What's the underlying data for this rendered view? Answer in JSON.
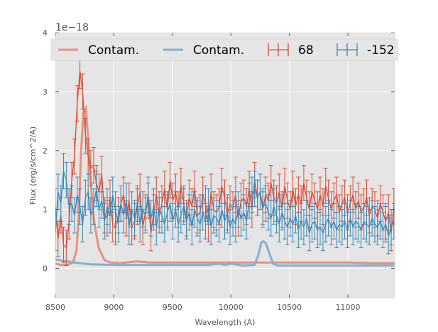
{
  "chart_data": {
    "type": "line",
    "title": "",
    "xlabel": "Wavelength (A)",
    "ylabel": "Flux (erg/s/cm^2/A)",
    "y_offset_text": "1e−18",
    "xlim": [
      8500,
      11400
    ],
    "ylim": [
      -0.5,
      4.0
    ],
    "y_scale_factor": 1e-18,
    "xticks": [
      8500,
      9000,
      9500,
      10000,
      10500,
      11000
    ],
    "xtick_labels": [
      "8500",
      "9000",
      "9500",
      "10000",
      "10500",
      "11000"
    ],
    "yticks": [
      0,
      1,
      2,
      3,
      4
    ],
    "ytick_labels": [
      "0",
      "1",
      "2",
      "3",
      "4"
    ],
    "grid": true,
    "legend_placement": "top",
    "colors": {
      "red": "#e24a33",
      "blue": "#348abd",
      "red_light": "#e8907d",
      "blue_light": "#7fb1d3",
      "background": "#e5e5e5"
    },
    "series": [
      {
        "name": "Contam.",
        "kind": "line",
        "color": "#e8907d",
        "x": [
          8500,
          8550,
          8600,
          8650,
          8680,
          8700,
          8720,
          8740,
          8760,
          8780,
          8800,
          8830,
          8870,
          8920,
          8970,
          9050,
          9200,
          9300,
          9500,
          10000,
          10500,
          11000,
          11200,
          11400
        ],
        "y": [
          0.08,
          0.06,
          0.06,
          0.1,
          0.3,
          0.9,
          2.0,
          2.65,
          2.72,
          2.2,
          1.5,
          0.8,
          0.35,
          0.14,
          0.1,
          0.09,
          0.12,
          0.1,
          0.1,
          0.1,
          0.1,
          0.1,
          0.09,
          0.09
        ]
      },
      {
        "name": "Contam.",
        "kind": "line",
        "color": "#7fb1d3",
        "x": [
          8500,
          8600,
          8700,
          8800,
          9000,
          9500,
          9800,
          9900,
          9950,
          10000,
          10100,
          10200,
          10230,
          10260,
          10280,
          10300,
          10330,
          10360,
          10400,
          10450,
          10500,
          11000,
          11400
        ],
        "y": [
          0.15,
          0.12,
          0.09,
          0.07,
          0.06,
          0.06,
          0.06,
          0.08,
          0.06,
          0.08,
          0.05,
          0.06,
          0.2,
          0.44,
          0.46,
          0.42,
          0.25,
          0.08,
          0.05,
          0.05,
          0.05,
          0.05,
          0.05
        ]
      },
      {
        "name": "68",
        "kind": "errorbar",
        "color": "#e24a33",
        "x": [
          8500,
          8523,
          8547,
          8570,
          8593,
          8617,
          8640,
          8663,
          8687,
          8710,
          8733,
          8757,
          8780,
          8803,
          8827,
          8850,
          8873,
          8897,
          8920,
          8943,
          8967,
          8990,
          9013,
          9037,
          9060,
          9083,
          9107,
          9130,
          9153,
          9177,
          9200,
          9223,
          9247,
          9270,
          9293,
          9317,
          9340,
          9363,
          9387,
          9410,
          9433,
          9457,
          9480,
          9503,
          9527,
          9550,
          9573,
          9597,
          9620,
          9643,
          9667,
          9690,
          9713,
          9737,
          9760,
          9783,
          9807,
          9830,
          9853,
          9877,
          9900,
          9923,
          9947,
          9970,
          9993,
          10017,
          10040,
          10063,
          10087,
          10110,
          10133,
          10157,
          10180,
          10203,
          10227,
          10250,
          10273,
          10297,
          10320,
          10343,
          10367,
          10390,
          10413,
          10437,
          10460,
          10483,
          10507,
          10530,
          10553,
          10577,
          10600,
          10623,
          10647,
          10670,
          10693,
          10717,
          10740,
          10763,
          10787,
          10810,
          10833,
          10857,
          10880,
          10903,
          10927,
          10950,
          10973,
          10997,
          11020,
          11043,
          11067,
          11090,
          11113,
          11137,
          11160,
          11183,
          11207,
          11230,
          11253,
          11277,
          11300,
          11323,
          11347,
          11370,
          11393
        ],
        "y": [
          1.05,
          0.5,
          0.9,
          0.4,
          0.35,
          0.8,
          1.5,
          1.9,
          2.8,
          3.35,
          3.0,
          2.25,
          1.9,
          1.7,
          1.75,
          1.45,
          1.3,
          1.6,
          0.9,
          0.85,
          1.2,
          0.75,
          0.7,
          0.9,
          1.1,
          1.25,
          0.85,
          1.15,
          0.7,
          0.8,
          1.05,
          1.3,
          0.7,
          0.95,
          1.15,
          0.6,
          0.95,
          1.25,
          0.9,
          1.1,
          1.35,
          1.0,
          1.5,
          1.15,
          1.3,
          1.0,
          1.4,
          1.1,
          0.85,
          1.2,
          1.05,
          1.35,
          0.9,
          0.95,
          1.25,
          1.1,
          0.75,
          1.3,
          1.0,
          0.95,
          1.05,
          1.4,
          1.2,
          0.9,
          1.1,
          1.0,
          1.25,
          0.85,
          1.15,
          1.2,
          1.05,
          1.35,
          1.0,
          1.5,
          1.2,
          1.3,
          1.0,
          1.25,
          1.15,
          1.45,
          1.2,
          1.1,
          1.3,
          1.0,
          1.4,
          1.15,
          1.0,
          1.35,
          1.05,
          1.25,
          1.1,
          1.45,
          1.2,
          1.0,
          1.3,
          1.15,
          1.0,
          1.25,
          1.05,
          1.4,
          1.2,
          1.0,
          1.15,
          1.25,
          0.95,
          1.1,
          1.2,
          0.95,
          1.1,
          1.25,
          1.0,
          1.15,
          0.95,
          1.05,
          1.2,
          0.9,
          1.05,
          1.0,
          0.85,
          1.1,
          0.95,
          0.8,
          0.95,
          0.6,
          1.05
        ],
        "yerr": 0.3
      },
      {
        "name": "-152",
        "kind": "errorbar",
        "color": "#348abd",
        "x": [
          8500,
          8523,
          8547,
          8570,
          8593,
          8617,
          8640,
          8663,
          8687,
          8710,
          8733,
          8757,
          8780,
          8803,
          8827,
          8850,
          8873,
          8897,
          8920,
          8943,
          8967,
          8990,
          9013,
          9037,
          9060,
          9083,
          9107,
          9130,
          9153,
          9177,
          9200,
          9223,
          9247,
          9270,
          9293,
          9317,
          9340,
          9363,
          9387,
          9410,
          9433,
          9457,
          9480,
          9503,
          9527,
          9550,
          9573,
          9597,
          9620,
          9643,
          9667,
          9690,
          9713,
          9737,
          9760,
          9783,
          9807,
          9830,
          9853,
          9877,
          9900,
          9923,
          9947,
          9970,
          9993,
          10017,
          10040,
          10063,
          10087,
          10110,
          10133,
          10157,
          10180,
          10203,
          10227,
          10250,
          10273,
          10297,
          10320,
          10343,
          10367,
          10390,
          10413,
          10437,
          10460,
          10483,
          10507,
          10530,
          10553,
          10577,
          10600,
          10623,
          10647,
          10670,
          10693,
          10717,
          10740,
          10763,
          10787,
          10810,
          10833,
          10857,
          10880,
          10903,
          10927,
          10950,
          10973,
          10997,
          11020,
          11043,
          11067,
          11090,
          11113,
          11137,
          11160,
          11183,
          11207,
          11230,
          11253,
          11277,
          11300,
          11323,
          11347,
          11370,
          11393
        ],
        "y": [
          0.6,
          1.3,
          1.1,
          1.65,
          1.5,
          1.05,
          1.1,
          0.9,
          1.25,
          1.05,
          0.75,
          1.2,
          1.3,
          0.9,
          1.05,
          1.35,
          1.0,
          1.15,
          0.8,
          1.05,
          0.9,
          1.25,
          1.0,
          0.75,
          1.1,
          0.9,
          1.15,
          0.7,
          1.0,
          0.85,
          1.1,
          0.75,
          1.0,
          0.9,
          1.25,
          0.85,
          1.05,
          0.7,
          1.0,
          0.9,
          0.75,
          0.95,
          1.1,
          0.8,
          1.0,
          0.75,
          0.9,
          1.05,
          0.8,
          0.95,
          0.7,
          1.0,
          0.85,
          0.75,
          0.95,
          0.8,
          1.05,
          0.7,
          0.9,
          0.85,
          0.75,
          1.0,
          0.8,
          0.95,
          0.7,
          0.85,
          0.75,
          1.0,
          0.85,
          0.95,
          0.8,
          1.15,
          1.25,
          1.35,
          1.2,
          1.3,
          1.05,
          1.1,
          0.95,
          0.85,
          1.05,
          0.9,
          0.75,
          0.95,
          0.8,
          0.7,
          0.85,
          0.75,
          0.9,
          0.65,
          0.8,
          0.7,
          0.85,
          0.6,
          0.75,
          0.8,
          0.65,
          0.7,
          0.6,
          0.75,
          0.85,
          0.7,
          0.8,
          0.65,
          0.75,
          0.7,
          0.8,
          0.65,
          0.85,
          0.7,
          0.8,
          0.75,
          0.65,
          0.8,
          0.75,
          0.7,
          0.85,
          0.75,
          0.7,
          0.8,
          0.65,
          0.75,
          0.55,
          0.7,
          0.8
        ],
        "yerr": 0.3
      }
    ]
  }
}
